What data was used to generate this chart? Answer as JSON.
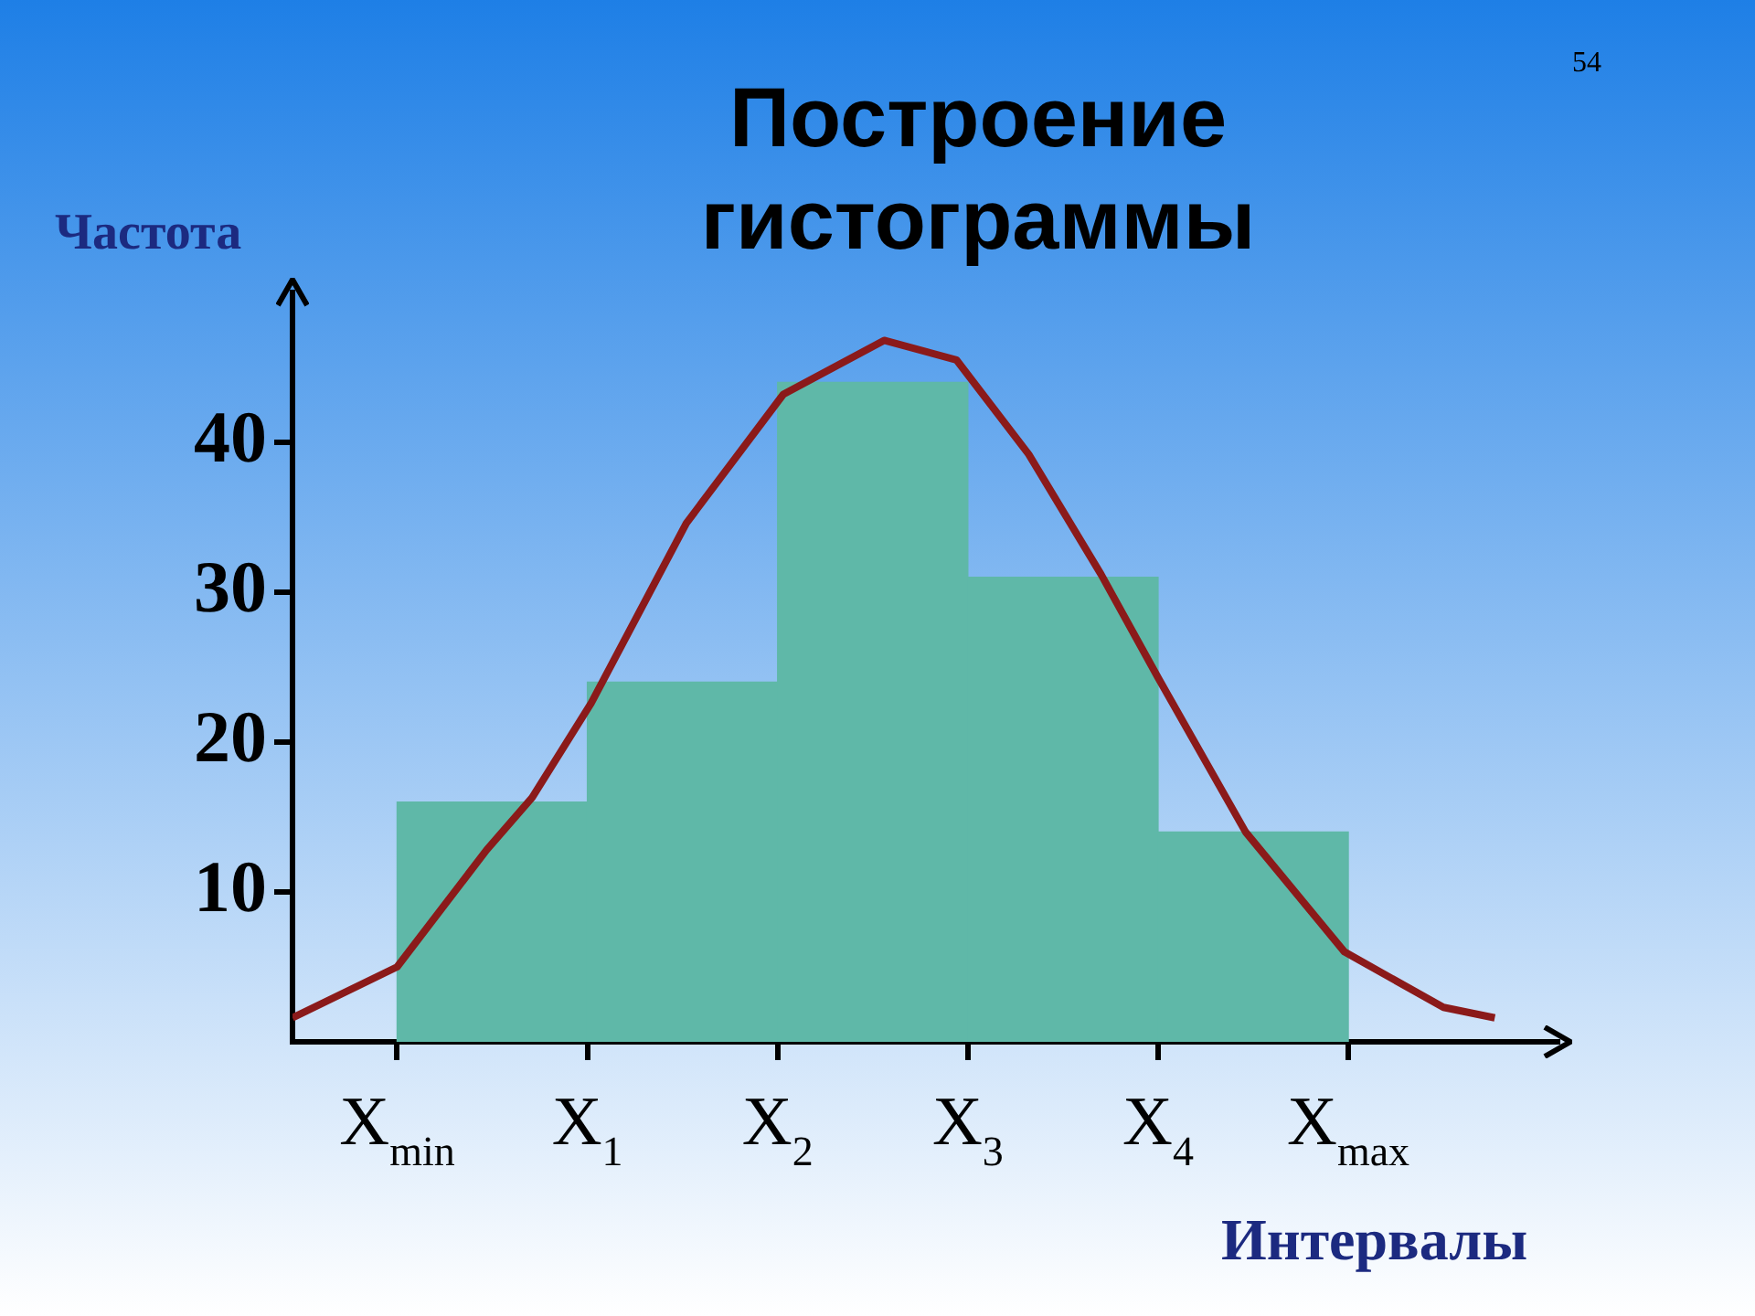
{
  "chart_data": {
    "type": "histogram",
    "title": "Построение гистограммы",
    "ylabel": "Частота",
    "xlabel": "Интервалы",
    "annotations": [
      "54"
    ],
    "bins": [
      0,
      1,
      2,
      3,
      4,
      5
    ],
    "values": [
      16,
      24,
      44,
      31,
      14
    ],
    "color": "#5fb8a8",
    "series": [
      {
        "type": "line",
        "color": "#8b1a1a",
        "x": [
          -0.55,
          0,
          0.47,
          0.71,
          1.02,
          1.52,
          2.03,
          2.56,
          2.94,
          3.32,
          3.7,
          4.0,
          4.46,
          4.98,
          5.5,
          5.77
        ],
        "values": [
          1.6,
          5,
          12.8,
          16.3,
          22.6,
          34.6,
          43.2,
          46.8,
          45.5,
          39.2,
          31.2,
          24.3,
          14,
          6,
          2.3,
          1.6
        ]
      }
    ],
    "marker": "none",
    "xlim": [
      -0.55,
      6.1
    ],
    "ylim": [
      0,
      50
    ],
    "xticks": [
      {
        "value": 0,
        "label": "X$_{min}$"
      },
      {
        "value": 1,
        "label": "X$_{1}$"
      },
      {
        "value": 2,
        "label": "X$_{2}$"
      },
      {
        "value": 3,
        "label": "X$_{3}$"
      },
      {
        "value": 4,
        "label": "X$_{4}$"
      },
      {
        "value": 5,
        "label": "X$_{max}$"
      }
    ],
    "yticks": [
      10,
      20,
      30,
      40
    ]
  }
}
